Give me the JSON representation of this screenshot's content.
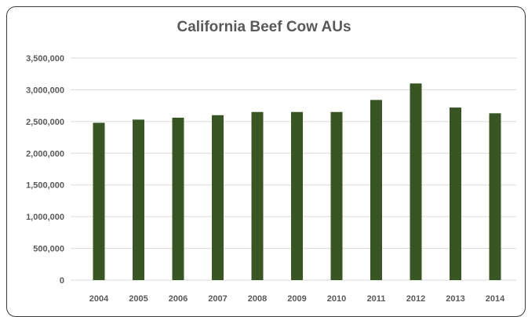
{
  "chart_data": {
    "type": "bar",
    "title": "California Beef Cow AUs",
    "xlabel": "",
    "ylabel": "",
    "categories": [
      "2004",
      "2005",
      "2006",
      "2007",
      "2008",
      "2009",
      "2010",
      "2011",
      "2012",
      "2013",
      "2014"
    ],
    "values": [
      2480000,
      2530000,
      2560000,
      2600000,
      2650000,
      2650000,
      2650000,
      2840000,
      3100000,
      2720000,
      2630000
    ],
    "ylim": [
      0,
      3500000
    ],
    "yticks": [
      0,
      500000,
      1000000,
      1500000,
      2000000,
      2500000,
      3000000,
      3500000
    ],
    "ytick_labels": [
      "0",
      "500,000",
      "1,000,000",
      "1,500,000",
      "2,000,000",
      "2,500,000",
      "3,000,000",
      "3,500,000"
    ],
    "grid": true,
    "legend": false,
    "colors": {
      "bar": "#375623",
      "gridline": "#d9d9d9",
      "text": "#595959"
    }
  }
}
